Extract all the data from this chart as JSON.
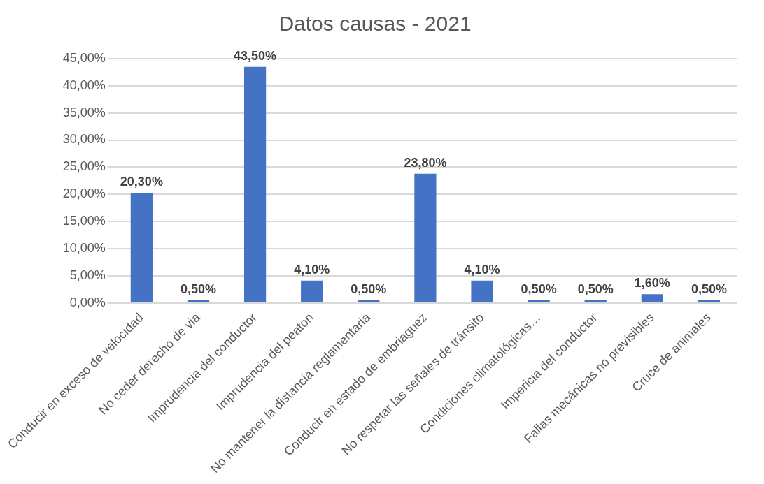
{
  "chart_data": {
    "type": "bar",
    "title": "Datos causas - 2021",
    "categories": [
      "Conducir en exceso de velocidad",
      "No ceder derecho de via",
      "Imprudencia del conductor",
      "Imprudencia del peaton",
      "No mantener la distancia reglamentaria",
      "Conducir en estado de embriaguez",
      "No respetar las señales de tránsito",
      "Condiciones climatológicas…",
      "Impericia del conductor",
      "Fallas mecánicas no previsibles",
      "Cruce de animales"
    ],
    "values": [
      20.3,
      0.5,
      43.5,
      4.1,
      0.5,
      23.8,
      4.1,
      0.5,
      0.5,
      1.6,
      0.5
    ],
    "value_labels": [
      "20,30%",
      "0,50%",
      "43,50%",
      "4,10%",
      "0,50%",
      "23,80%",
      "4,10%",
      "0,50%",
      "0,50%",
      "1,60%",
      "0,50%"
    ],
    "color": "#4472c4",
    "ylim": [
      0,
      45
    ],
    "yticks": [
      {
        "value": 0,
        "label": "0,00%"
      },
      {
        "value": 5,
        "label": "5,00%"
      },
      {
        "value": 10,
        "label": "10,00%"
      },
      {
        "value": 15,
        "label": "15,00%"
      },
      {
        "value": 20,
        "label": "20,00%"
      },
      {
        "value": 25,
        "label": "25,00%"
      },
      {
        "value": 30,
        "label": "30,00%"
      },
      {
        "value": 35,
        "label": "35,00%"
      },
      {
        "value": 40,
        "label": "40,00%"
      },
      {
        "value": 45,
        "label": "45,00%"
      }
    ],
    "grid": "y",
    "legend": false
  }
}
